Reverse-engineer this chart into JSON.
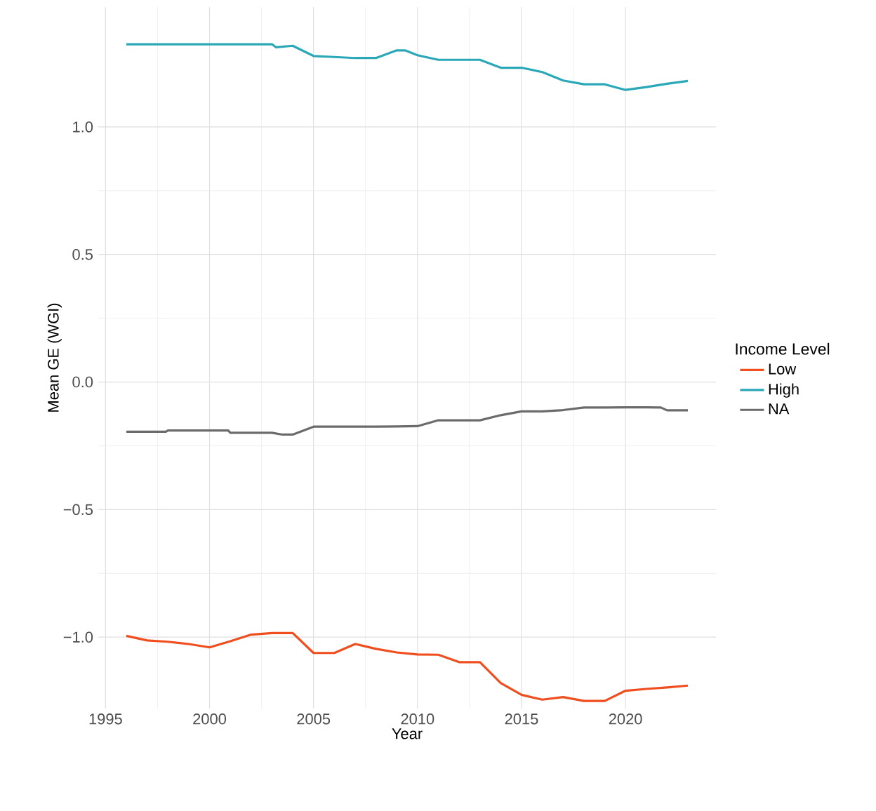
{
  "chart_data": {
    "type": "line",
    "xlabel": "Year",
    "ylabel": "Mean GE (WGI)",
    "legend_title": "Income Level",
    "legend": "right",
    "grid": true,
    "line_style": "solid",
    "marker": "none",
    "xlim": [
      1994.65,
      2024.35
    ],
    "ylim": [
      -1.28,
      1.47
    ],
    "xticks": [
      1995,
      2000,
      2005,
      2010,
      2015,
      2020
    ],
    "yticks": [
      {
        "value": -1.0,
        "label": "−1.0"
      },
      {
        "value": -0.5,
        "label": "−0.5"
      },
      {
        "value": 0.0,
        "label": "0.0"
      },
      {
        "value": 0.5,
        "label": "0.5"
      },
      {
        "value": 1.0,
        "label": "1.0"
      }
    ],
    "series": [
      {
        "name": "Low",
        "color": "#f04e1e",
        "x": [
          1996,
          1997,
          1998,
          1999,
          2000,
          2001,
          2002,
          2003,
          2004,
          2005,
          2006,
          2007,
          2008,
          2009,
          2010,
          2011,
          2012,
          2013,
          2014,
          2015,
          2016,
          2017,
          2018,
          2019,
          2020,
          2021,
          2022,
          2023
        ],
        "values": [
          -0.995,
          -1.013,
          -1.018,
          -1.027,
          -1.04,
          -1.016,
          -0.99,
          -0.984,
          -0.984,
          -1.062,
          -1.062,
          -1.027,
          -1.046,
          -1.06,
          -1.068,
          -1.069,
          -1.098,
          -1.098,
          -1.18,
          -1.226,
          -1.245,
          -1.235,
          -1.25,
          -1.25,
          -1.21,
          -1.203,
          -1.197,
          -1.19
        ]
      },
      {
        "name": "High",
        "color": "#2aa8b8",
        "x": [
          1996,
          1997,
          1998,
          1999,
          2000,
          2001,
          2002,
          2003,
          2003.2,
          2004,
          2005,
          2006,
          2007,
          2008,
          2009,
          2009.4,
          2010,
          2011,
          2012,
          2013,
          2014,
          2015,
          2016,
          2017,
          2018,
          2019,
          2020,
          2021,
          2022,
          2023
        ],
        "values": [
          1.324,
          1.324,
          1.324,
          1.324,
          1.324,
          1.324,
          1.324,
          1.324,
          1.312,
          1.318,
          1.278,
          1.274,
          1.27,
          1.27,
          1.3,
          1.3,
          1.281,
          1.263,
          1.263,
          1.263,
          1.232,
          1.232,
          1.215,
          1.182,
          1.167,
          1.167,
          1.145,
          1.156,
          1.169,
          1.18
        ]
      },
      {
        "name": "NA",
        "color": "#6b6b6b",
        "x": [
          1996,
          1997,
          1997.9,
          1998,
          1999,
          2000,
          2000.9,
          2001,
          2002,
          2003,
          2003.5,
          2004,
          2005,
          2006,
          2007,
          2008,
          2009,
          2010,
          2011,
          2012,
          2013,
          2014,
          2015,
          2016,
          2017,
          2018,
          2019,
          2020,
          2021,
          2021.7,
          2022,
          2023
        ],
        "values": [
          -0.195,
          -0.195,
          -0.195,
          -0.19,
          -0.19,
          -0.19,
          -0.19,
          -0.199,
          -0.199,
          -0.199,
          -0.206,
          -0.206,
          -0.175,
          -0.175,
          -0.175,
          -0.175,
          -0.174,
          -0.173,
          -0.15,
          -0.15,
          -0.15,
          -0.13,
          -0.115,
          -0.115,
          -0.11,
          -0.1,
          -0.1,
          -0.099,
          -0.099,
          -0.1,
          -0.111,
          -0.111
        ]
      }
    ]
  }
}
